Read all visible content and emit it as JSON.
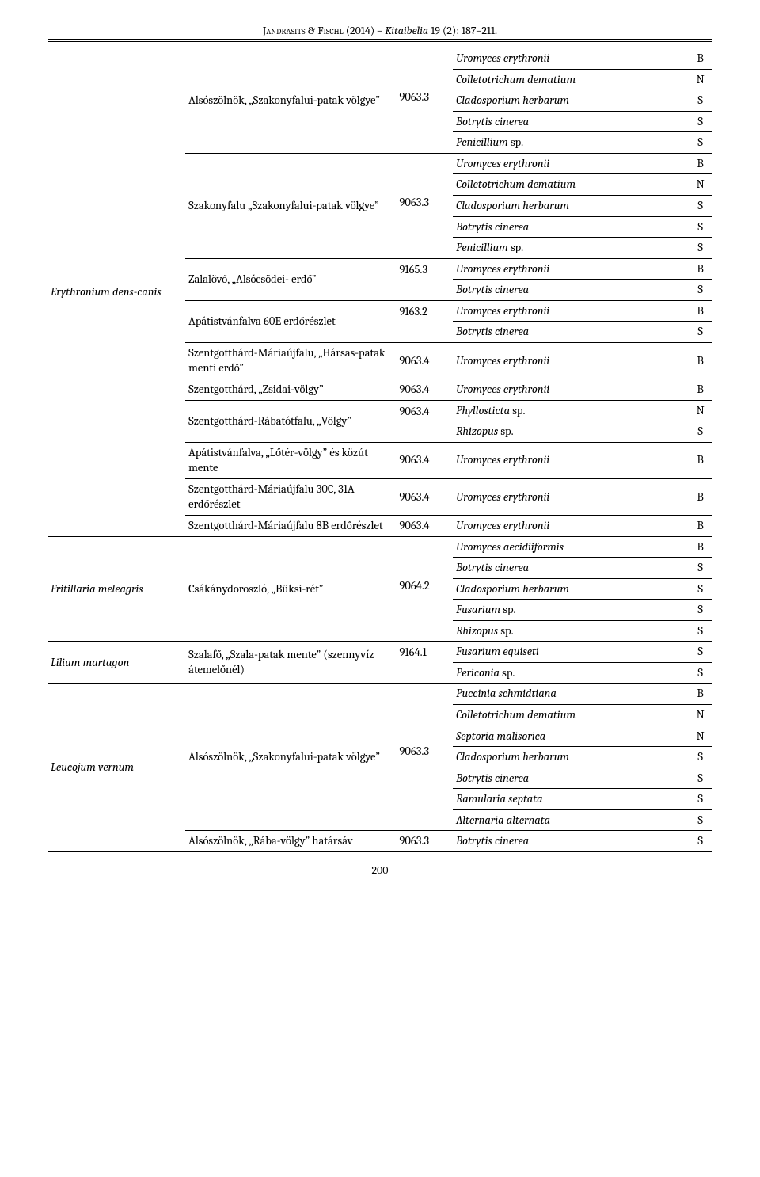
{
  "header": {
    "authors": "Jandrasits & Fischl",
    "year": "(2014)",
    "journal": "Kitaibelia",
    "volissue": "19 (2): 187–211."
  },
  "page_number": "200",
  "hosts": [
    {
      "name": "Erythronium dens-canis",
      "blocks": [
        {
          "location": "Alsószölnök, „Szakonyfalui-patak völgye”",
          "code": "9063.3",
          "code_align": 2,
          "fungi": [
            {
              "n": "Uromyces erythronii",
              "c": "B"
            },
            {
              "n": "Colletotrichum dematium",
              "c": "N"
            },
            {
              "n": "Cladosporium herbarum",
              "c": "S"
            },
            {
              "n": "Botrytis cinerea",
              "c": "S"
            },
            {
              "n": "Penicillium <span class=\"sp-roman\">sp.</span>",
              "c": "S"
            }
          ]
        },
        {
          "location": "Szakonyfalu „Szakonyfalui-patak völgye”",
          "code": "9063.3",
          "code_align": 2,
          "fungi": [
            {
              "n": "Uromyces erythronii",
              "c": "B"
            },
            {
              "n": "Colletotrichum dematium",
              "c": "N"
            },
            {
              "n": "Cladosporium herbarum",
              "c": "S"
            },
            {
              "n": "Botrytis cinerea",
              "c": "S"
            },
            {
              "n": "Penicillium <span class=\"sp-roman\">sp.</span>",
              "c": "S"
            }
          ]
        },
        {
          "location": "Zalalövő, „Alsócsödei- erdő”",
          "code": "9165.3",
          "code_align": 0,
          "fungi": [
            {
              "n": "Uromyces erythronii",
              "c": "B"
            },
            {
              "n": "Botrytis cinerea",
              "c": "S"
            }
          ]
        },
        {
          "location": "Apátistvánfalva 60E erdőrészlet",
          "code": "9163.2",
          "code_align": 0,
          "fungi": [
            {
              "n": "Uromyces erythronii",
              "c": "B"
            },
            {
              "n": "Botrytis cinerea",
              "c": "S"
            }
          ]
        },
        {
          "location": "Szentgotthárd-Máriaújfalu, „Hársas-patak menti erdő”",
          "code": "9063.4",
          "fungi": [
            {
              "n": "Uromyces erythronii",
              "c": "B"
            }
          ]
        },
        {
          "location": "Szentgotthárd, „Zsidai-völgy”",
          "code": "9063.4",
          "fungi": [
            {
              "n": "Uromyces erythronii",
              "c": "B"
            }
          ]
        },
        {
          "location": "Szentgotthárd-Rábatótfalu, „Völgy”",
          "code": "9063.4",
          "code_align": 0,
          "fungi": [
            {
              "n": "Phyllosticta <span class=\"sp-roman\">sp.</span>",
              "c": "N"
            },
            {
              "n": "Rhizopus <span class=\"sp-roman\">sp.</span>",
              "c": "S"
            }
          ]
        },
        {
          "location": "Apátistvánfalva, „Lőtér-völgy” és közút mente",
          "code": "9063.4",
          "fungi": [
            {
              "n": "Uromyces erythronii",
              "c": "B"
            }
          ]
        },
        {
          "location": "Szentgotthárd-Máriaújfalu 30C, 31A erdőrészlet",
          "code": "9063.4",
          "fungi": [
            {
              "n": "Uromyces erythronii",
              "c": "B"
            }
          ]
        },
        {
          "location": "Szentgotthárd-Máriaújfalu 8B erdőrészlet",
          "code": "9063.4",
          "fungi": [
            {
              "n": "Uromyces erythronii",
              "c": "B"
            }
          ]
        }
      ]
    },
    {
      "name": "Fritillaria meleagris",
      "blocks": [
        {
          "location": "Csákánydoroszló, „Büksi-rét”",
          "code": "9064.2",
          "code_align": 2,
          "fungi": [
            {
              "n": "Uromyces aecidiiformis",
              "c": "B"
            },
            {
              "n": "Botrytis cinerea",
              "c": "S"
            },
            {
              "n": "Cladosporium herbarum",
              "c": "S"
            },
            {
              "n": "Fusarium <span class=\"sp-roman\">sp.</span>",
              "c": "S"
            },
            {
              "n": "Rhizopus <span class=\"sp-roman\">sp.</span>",
              "c": "S"
            }
          ]
        }
      ]
    },
    {
      "name": "Lilium martagon",
      "blocks": [
        {
          "location": "Szalafő, „Szala-patak mente” (szennyvíz átemelőnél)",
          "code": "9164.1",
          "code_align": 0,
          "fungi": [
            {
              "n": "Fusarium equiseti",
              "c": "S"
            },
            {
              "n": "Periconia <span class=\"sp-roman\">sp.</span>",
              "c": "S"
            }
          ]
        }
      ]
    },
    {
      "name": "Leucojum vernum",
      "blocks": [
        {
          "location": "Alsószölnök, „Szakonyfalui-patak völgye”",
          "code": "9063.3",
          "code_align": 3,
          "fungi": [
            {
              "n": "Puccinia schmidtiana",
              "c": "B"
            },
            {
              "n": "Colletotrichum dematium",
              "c": "N"
            },
            {
              "n": "Septoria malisorica",
              "c": "N"
            },
            {
              "n": "Cladosporium herbarum",
              "c": "S"
            },
            {
              "n": "Botrytis cinerea",
              "c": "S"
            },
            {
              "n": "Ramularia septata",
              "c": "S"
            },
            {
              "n": "Alternaria alternata",
              "c": "S"
            }
          ]
        },
        {
          "location": "Alsószölnök, „Rába-völgy” határsáv",
          "code": "9063.3",
          "fungi": [
            {
              "n": "Botrytis cinerea",
              "c": "S"
            }
          ]
        }
      ]
    }
  ]
}
